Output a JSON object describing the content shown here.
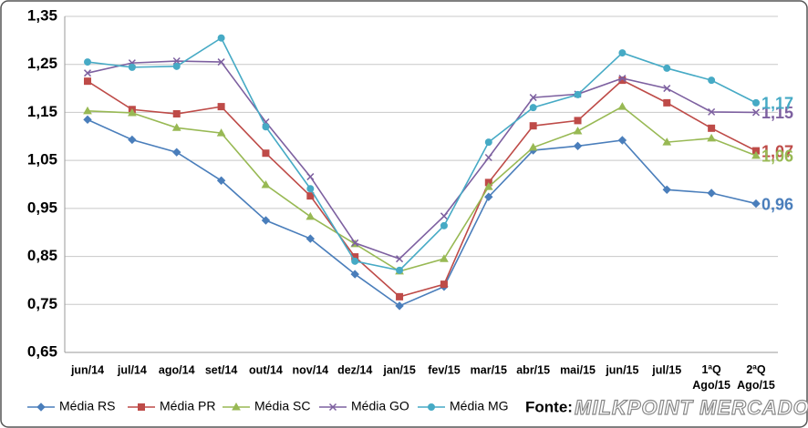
{
  "chart_data": {
    "type": "line",
    "categories": [
      "jun/14",
      "jul/14",
      "ago/14",
      "set/14",
      "out/14",
      "nov/14",
      "dez/14",
      "jan/15",
      "fev/15",
      "mar/15",
      "abr/15",
      "mai/15",
      "jun/15",
      "jul/15",
      "1ªQ Ago/15",
      "2ªQ Ago/15"
    ],
    "series": [
      {
        "name": "Média RS",
        "color": "#4a7ebb",
        "marker": "diamond",
        "values": [
          1.135,
          1.093,
          1.067,
          1.008,
          0.925,
          0.887,
          0.813,
          0.747,
          0.787,
          0.974,
          1.071,
          1.08,
          1.092,
          0.989,
          0.982,
          0.96
        ],
        "value_labels": [
          null,
          null,
          null,
          null,
          null,
          null,
          null,
          null,
          null,
          null,
          null,
          null,
          null,
          null,
          null,
          "0,96"
        ]
      },
      {
        "name": "Média PR",
        "color": "#be4b48",
        "marker": "square",
        "values": [
          1.215,
          1.156,
          1.147,
          1.162,
          1.065,
          0.976,
          0.849,
          0.766,
          0.792,
          1.004,
          1.122,
          1.133,
          1.217,
          1.17,
          1.117,
          1.07
        ],
        "value_labels": [
          null,
          null,
          null,
          null,
          null,
          null,
          null,
          null,
          null,
          null,
          null,
          null,
          null,
          null,
          null,
          "1,07"
        ]
      },
      {
        "name": "Média SC",
        "color": "#98b954",
        "marker": "triangle",
        "values": [
          1.153,
          1.149,
          1.118,
          1.107,
          0.999,
          0.933,
          0.876,
          0.819,
          0.845,
          0.995,
          1.077,
          1.111,
          1.162,
          1.088,
          1.096,
          1.06
        ],
        "value_labels": [
          null,
          null,
          null,
          null,
          null,
          null,
          null,
          null,
          null,
          null,
          null,
          null,
          null,
          null,
          null,
          "1,06"
        ]
      },
      {
        "name": "Média GO",
        "color": "#7d60a0",
        "marker": "cross",
        "values": [
          1.232,
          1.253,
          1.257,
          1.255,
          1.13,
          1.016,
          0.878,
          0.845,
          0.934,
          1.056,
          1.181,
          1.188,
          1.221,
          1.2,
          1.151,
          1.15
        ],
        "value_labels": [
          null,
          null,
          null,
          null,
          null,
          null,
          null,
          null,
          null,
          null,
          null,
          null,
          null,
          null,
          null,
          "1,15"
        ]
      },
      {
        "name": "Média MG",
        "color": "#46aac5",
        "marker": "circle",
        "values": [
          1.255,
          1.244,
          1.246,
          1.305,
          1.12,
          0.991,
          0.84,
          0.821,
          0.914,
          1.088,
          1.16,
          1.187,
          1.274,
          1.242,
          1.217,
          1.17
        ],
        "value_labels": [
          null,
          null,
          null,
          null,
          null,
          null,
          null,
          null,
          null,
          null,
          null,
          null,
          null,
          null,
          null,
          "1,17"
        ]
      }
    ],
    "ylim": [
      0.65,
      1.35
    ],
    "yticks": [
      {
        "value": 0.65,
        "label": "0,65"
      },
      {
        "value": 0.75,
        "label": "0,75"
      },
      {
        "value": 0.85,
        "label": "0,85"
      },
      {
        "value": 0.95,
        "label": "0,95"
      },
      {
        "value": 1.05,
        "label": "1,05"
      },
      {
        "value": 1.15,
        "label": "1,15"
      },
      {
        "value": 1.25,
        "label": "1,25"
      },
      {
        "value": 1.35,
        "label": "1,35"
      }
    ],
    "grid": true,
    "legend": "bottom",
    "source": "Fonte:",
    "logo": "MILKPOINT MERCADO"
  }
}
